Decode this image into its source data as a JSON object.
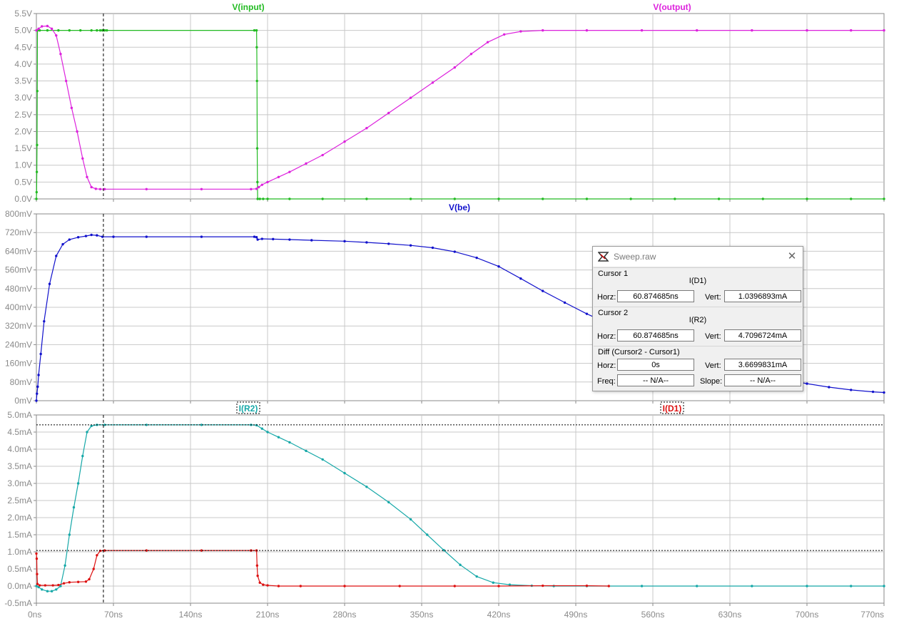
{
  "colors": {
    "input": "#22bb22",
    "output": "#dd22dd",
    "be": "#1111cc",
    "r2": "#16a8a8",
    "d1": "#dd1111",
    "grid": "#c8c8c8",
    "axis_text": "#8a8a8a"
  },
  "chart_data": [
    {
      "type": "line",
      "title": "",
      "xlabel": "",
      "ylabel": "",
      "xlim_ns": [
        0,
        770
      ],
      "ylim": [
        0,
        5.5
      ],
      "y_unit": "V",
      "y_ticks": [
        "0.0V",
        "0.5V",
        "1.0V",
        "1.5V",
        "2.0V",
        "2.5V",
        "3.0V",
        "3.5V",
        "4.0V",
        "4.5V",
        "5.0V",
        "5.5V"
      ],
      "series": [
        {
          "name": "V(input)",
          "color": "#22bb22",
          "points": [
            [
              0,
              0
            ],
            [
              0.2,
              0.2
            ],
            [
              0.4,
              0.8
            ],
            [
              0.6,
              1.6
            ],
            [
              0.8,
              3.2
            ],
            [
              1.0,
              5.0
            ],
            [
              3,
              5.0
            ],
            [
              10,
              5.0
            ],
            [
              20,
              5.0
            ],
            [
              30,
              5.0
            ],
            [
              40,
              5.0
            ],
            [
              50,
              5.0
            ],
            [
              55,
              5.0
            ],
            [
              58,
              5.0
            ],
            [
              60,
              5.0
            ],
            [
              62,
              5.0
            ],
            [
              64,
              5.0
            ],
            [
              198,
              5.0
            ],
            [
              200,
              5.0
            ],
            [
              200.2,
              4.5
            ],
            [
              200.4,
              3.5
            ],
            [
              200.6,
              1.5
            ],
            [
              200.8,
              0.5
            ],
            [
              201,
              0.0
            ],
            [
              203,
              0.0
            ],
            [
              206,
              0.0
            ],
            [
              210,
              0.0
            ],
            [
              230,
              0.0
            ],
            [
              260,
              0.0
            ],
            [
              300,
              0.0
            ],
            [
              340,
              0.0
            ],
            [
              380,
              0.0
            ],
            [
              420,
              0.0
            ],
            [
              460,
              0.0
            ],
            [
              500,
              0.0
            ],
            [
              540,
              0.0
            ],
            [
              580,
              0.0
            ],
            [
              620,
              0.0
            ],
            [
              660,
              0.0
            ],
            [
              700,
              0.0
            ],
            [
              740,
              0.0
            ],
            [
              770,
              0.0
            ]
          ]
        },
        {
          "name": "V(output)",
          "color": "#dd22dd",
          "points": [
            [
              0,
              5.0
            ],
            [
              2,
              5.05
            ],
            [
              5,
              5.12
            ],
            [
              10,
              5.13
            ],
            [
              14,
              5.05
            ],
            [
              18,
              4.85
            ],
            [
              22,
              4.3
            ],
            [
              27,
              3.5
            ],
            [
              32,
              2.7
            ],
            [
              37,
              2.0
            ],
            [
              42,
              1.2
            ],
            [
              46,
              0.65
            ],
            [
              50,
              0.35
            ],
            [
              54,
              0.3
            ],
            [
              58,
              0.29
            ],
            [
              62,
              0.29
            ],
            [
              100,
              0.29
            ],
            [
              150,
              0.29
            ],
            [
              195,
              0.29
            ],
            [
              200,
              0.3
            ],
            [
              202,
              0.35
            ],
            [
              205,
              0.42
            ],
            [
              210,
              0.5
            ],
            [
              220,
              0.65
            ],
            [
              230,
              0.8
            ],
            [
              245,
              1.05
            ],
            [
              260,
              1.3
            ],
            [
              280,
              1.7
            ],
            [
              300,
              2.1
            ],
            [
              320,
              2.55
            ],
            [
              340,
              3.0
            ],
            [
              360,
              3.45
            ],
            [
              380,
              3.9
            ],
            [
              395,
              4.3
            ],
            [
              410,
              4.65
            ],
            [
              425,
              4.88
            ],
            [
              440,
              4.97
            ],
            [
              460,
              5.0
            ],
            [
              500,
              5.0
            ],
            [
              550,
              5.0
            ],
            [
              600,
              5.0
            ],
            [
              650,
              5.0
            ],
            [
              700,
              5.0
            ],
            [
              740,
              5.0
            ],
            [
              770,
              5.0
            ]
          ]
        }
      ]
    },
    {
      "type": "line",
      "title": "",
      "xlabel": "",
      "ylabel": "",
      "xlim_ns": [
        0,
        770
      ],
      "ylim": [
        0,
        800
      ],
      "y_unit": "mV",
      "y_ticks": [
        "0mV",
        "80mV",
        "160mV",
        "240mV",
        "320mV",
        "400mV",
        "480mV",
        "560mV",
        "640mV",
        "720mV",
        "800mV"
      ],
      "series": [
        {
          "name": "V(be)",
          "color": "#1111cc",
          "points": [
            [
              0,
              0
            ],
            [
              0.5,
              30
            ],
            [
              1.2,
              60
            ],
            [
              2,
              110
            ],
            [
              4,
              200
            ],
            [
              7,
              340
            ],
            [
              12,
              500
            ],
            [
              18,
              620
            ],
            [
              24,
              670
            ],
            [
              30,
              690
            ],
            [
              38,
              700
            ],
            [
              45,
              705
            ],
            [
              50,
              710
            ],
            [
              55,
              708
            ],
            [
              60,
              702
            ],
            [
              70,
              702
            ],
            [
              100,
              702
            ],
            [
              150,
              702
            ],
            [
              198,
              702
            ],
            [
              200,
              700
            ],
            [
              201,
              690
            ],
            [
              205,
              693
            ],
            [
              215,
              692
            ],
            [
              230,
              690
            ],
            [
              250,
              687
            ],
            [
              280,
              683
            ],
            [
              300,
              678
            ],
            [
              320,
              672
            ],
            [
              340,
              665
            ],
            [
              360,
              655
            ],
            [
              380,
              638
            ],
            [
              400,
              612
            ],
            [
              420,
              575
            ],
            [
              440,
              523
            ],
            [
              460,
              470
            ],
            [
              480,
              420
            ],
            [
              500,
              372
            ],
            [
              520,
              330
            ],
            [
              540,
              290
            ],
            [
              560,
              255
            ],
            [
              580,
              220
            ],
            [
              600,
              188
            ],
            [
              620,
              160
            ],
            [
              640,
              133
            ],
            [
              660,
              110
            ],
            [
              680,
              90
            ],
            [
              700,
              73
            ],
            [
              720,
              58
            ],
            [
              740,
              46
            ],
            [
              760,
              38
            ],
            [
              770,
              35
            ]
          ]
        }
      ]
    },
    {
      "type": "line",
      "title": "",
      "xlabel": "",
      "ylabel": "",
      "xlim_ns": [
        0,
        770
      ],
      "ylim": [
        -0.5,
        5.0
      ],
      "y_unit": "mA",
      "y_ticks": [
        "-0.5mA",
        "0.0mA",
        "0.5mA",
        "1.0mA",
        "1.5mA",
        "2.0mA",
        "2.5mA",
        "3.0mA",
        "3.5mA",
        "4.0mA",
        "4.5mA",
        "5.0mA"
      ],
      "series": [
        {
          "name": "I(R2)",
          "color": "#16a8a8",
          "points": [
            [
              0,
              0
            ],
            [
              2,
              -0.03
            ],
            [
              5,
              -0.1
            ],
            [
              10,
              -0.15
            ],
            [
              14,
              -0.15
            ],
            [
              18,
              -0.1
            ],
            [
              22,
              0.0
            ],
            [
              26,
              0.6
            ],
            [
              30,
              1.5
            ],
            [
              34,
              2.3
            ],
            [
              38,
              3.0
            ],
            [
              42,
              3.8
            ],
            [
              46,
              4.5
            ],
            [
              50,
              4.68
            ],
            [
              55,
              4.71
            ],
            [
              62,
              4.71
            ],
            [
              100,
              4.71
            ],
            [
              150,
              4.71
            ],
            [
              195,
              4.71
            ],
            [
              200,
              4.7
            ],
            [
              205,
              4.6
            ],
            [
              210,
              4.5
            ],
            [
              220,
              4.35
            ],
            [
              230,
              4.2
            ],
            [
              245,
              3.95
            ],
            [
              260,
              3.7
            ],
            [
              280,
              3.3
            ],
            [
              300,
              2.9
            ],
            [
              320,
              2.45
            ],
            [
              340,
              1.95
            ],
            [
              355,
              1.5
            ],
            [
              370,
              1.05
            ],
            [
              385,
              0.62
            ],
            [
              400,
              0.28
            ],
            [
              415,
              0.1
            ],
            [
              430,
              0.04
            ],
            [
              450,
              0.01
            ],
            [
              470,
              0.0
            ],
            [
              500,
              0.0
            ],
            [
              550,
              0.0
            ],
            [
              600,
              0.0
            ],
            [
              650,
              0.0
            ],
            [
              700,
              0.0
            ],
            [
              740,
              0.0
            ],
            [
              770,
              0.0
            ]
          ]
        },
        {
          "name": "I(D1)",
          "color": "#dd1111",
          "points": [
            [
              0,
              0.95
            ],
            [
              0.3,
              0.8
            ],
            [
              0.6,
              0.35
            ],
            [
              1,
              0.06
            ],
            [
              3,
              0.02
            ],
            [
              8,
              0.02
            ],
            [
              15,
              0.02
            ],
            [
              20,
              0.03
            ],
            [
              25,
              0.08
            ],
            [
              30,
              0.11
            ],
            [
              38,
              0.12
            ],
            [
              45,
              0.13
            ],
            [
              48,
              0.2
            ],
            [
              52,
              0.5
            ],
            [
              55,
              0.9
            ],
            [
              58,
              1.03
            ],
            [
              62,
              1.04
            ],
            [
              100,
              1.04
            ],
            [
              150,
              1.04
            ],
            [
              195,
              1.04
            ],
            [
              200,
              1.04
            ],
            [
              200.5,
              0.6
            ],
            [
              201,
              0.3
            ],
            [
              203,
              0.1
            ],
            [
              206,
              0.04
            ],
            [
              210,
              0.02
            ],
            [
              220,
              0.0
            ],
            [
              240,
              0.0
            ],
            [
              280,
              0.0
            ],
            [
              330,
              0.0
            ],
            [
              380,
              0.0
            ],
            [
              420,
              0.0
            ],
            [
              460,
              0.01
            ],
            [
              500,
              0.01
            ],
            [
              520,
              0.0
            ]
          ]
        }
      ]
    }
  ],
  "x_ticks": [
    "0ns",
    "70ns",
    "140ns",
    "210ns",
    "280ns",
    "350ns",
    "420ns",
    "490ns",
    "560ns",
    "630ns",
    "700ns",
    "770ns"
  ],
  "cursor": {
    "x_ns": 60.874685,
    "i_d1_mA": 1.0396893,
    "i_r2_mA": 4.7096724
  },
  "dialog": {
    "title": "Sweep.raw",
    "cursor1": {
      "label": "Cursor 1",
      "trace": "I(D1)",
      "horz_label": "Horz:",
      "horz": "60.874685ns",
      "vert_label": "Vert:",
      "vert": "1.0396893mA"
    },
    "cursor2": {
      "label": "Cursor 2",
      "trace": "I(R2)",
      "horz_label": "Horz:",
      "horz": "60.874685ns",
      "vert_label": "Vert:",
      "vert": "4.7096724mA"
    },
    "diff": {
      "label": "Diff (Cursor2 - Cursor1)",
      "horz_label": "Horz:",
      "horz": "0s",
      "vert_label": "Vert:",
      "vert": "3.6699831mA",
      "freq_label": "Freq:",
      "freq": "-- N/A--",
      "slope_label": "Slope:",
      "slope": "-- N/A--"
    }
  }
}
